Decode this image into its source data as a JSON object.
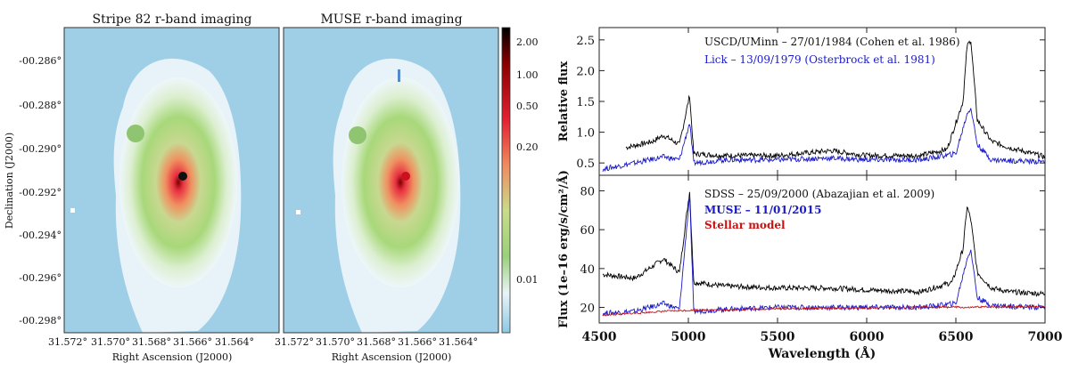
{
  "left_figure": {
    "panel_titles": [
      "Stripe 82 r-band imaging",
      "MUSE r-band imaging"
    ],
    "y_axis_label": "Declination (J2000)",
    "x_axis_label": "Right Ascension (J2000)",
    "dec_ticks": [
      "-00.286°",
      "-00.288°",
      "-00.290°",
      "-00.292°",
      "-00.294°",
      "-00.296°",
      "-00.298°"
    ],
    "ra_ticks": [
      "31.572°",
      "31.570°",
      "31.568°",
      "31.566°",
      "31.564°"
    ],
    "colorbar_ticks": [
      "2.00",
      "1.00",
      "0.50",
      "0.20",
      "0.01"
    ]
  },
  "chart_data": [
    {
      "type": "line",
      "panel": "top",
      "ylabel": "Relative flux",
      "xlim": [
        4500,
        7000
      ],
      "ylim": [
        0.3,
        2.7
      ],
      "yticks": [
        "0.5",
        "1.0",
        "1.5",
        "2.0",
        "2.5"
      ],
      "series": [
        {
          "name": "USCD/UMinn – 27/01/1984 (Cohen et al. 1986)",
          "color": "#000000",
          "x": [
            4650,
            4800,
            4860,
            4950,
            5007,
            5030,
            5200,
            5500,
            5800,
            6000,
            6300,
            6450,
            6540,
            6563,
            6584,
            6620,
            6700,
            6800,
            7000
          ],
          "y": [
            0.75,
            0.85,
            0.95,
            0.8,
            1.6,
            0.65,
            0.62,
            0.62,
            0.7,
            0.62,
            0.62,
            0.72,
            1.5,
            2.4,
            2.5,
            1.2,
            0.85,
            0.75,
            0.6
          ]
        },
        {
          "name": "Lick – 13/09/1979 (Osterbrock et al. 1981)",
          "color": "#1a1acc",
          "x": [
            4520,
            4700,
            4860,
            4950,
            5007,
            5030,
            5200,
            5500,
            5800,
            6000,
            6300,
            6500,
            6563,
            6584,
            6620,
            6700,
            7000
          ],
          "y": [
            0.4,
            0.5,
            0.6,
            0.55,
            1.15,
            0.5,
            0.55,
            0.55,
            0.58,
            0.55,
            0.55,
            0.65,
            1.3,
            1.4,
            0.8,
            0.55,
            0.52
          ]
        }
      ]
    },
    {
      "type": "line",
      "panel": "bottom",
      "xlabel": "Wavelength (Å)",
      "ylabel": "Flux (1e–16 erg/s/cm²/Å)",
      "xlim": [
        4500,
        7000
      ],
      "ylim": [
        12,
        88
      ],
      "yticks": [
        "20",
        "40",
        "60",
        "80"
      ],
      "xticks": [
        "4500",
        "5000",
        "5500",
        "6000",
        "6500",
        "7000"
      ],
      "series": [
        {
          "name": "SDSS – 25/09/2000 (Abazajian et al. 2009)",
          "color": "#000000",
          "x": [
            4520,
            4700,
            4860,
            4950,
            5007,
            5030,
            5200,
            5500,
            5800,
            6000,
            6300,
            6480,
            6540,
            6563,
            6584,
            6620,
            6700,
            6800,
            7000
          ],
          "y": [
            37,
            35,
            45,
            38,
            80,
            33,
            31,
            30,
            30,
            29,
            28,
            33,
            50,
            72,
            65,
            38,
            30,
            28,
            27
          ]
        },
        {
          "name": "MUSE – 11/01/2015",
          "color": "#1a1acc",
          "x": [
            4520,
            4700,
            4860,
            4950,
            5007,
            5030,
            5200,
            5500,
            5800,
            6000,
            6300,
            6500,
            6563,
            6584,
            6620,
            6700,
            7000
          ],
          "y": [
            17,
            18,
            22,
            19,
            78,
            18,
            19,
            20,
            20,
            20,
            20,
            22,
            45,
            50,
            25,
            21,
            20
          ]
        },
        {
          "name": "Stellar model",
          "color": "#cc1111",
          "x": [
            4520,
            4700,
            4860,
            5000,
            5200,
            5500,
            5800,
            6000,
            6300,
            6500,
            6563,
            6620,
            7000
          ],
          "y": [
            16,
            17,
            18,
            18.5,
            18.8,
            19.3,
            19.5,
            19.8,
            20,
            20.2,
            19.8,
            20.2,
            20.5
          ]
        }
      ]
    }
  ]
}
